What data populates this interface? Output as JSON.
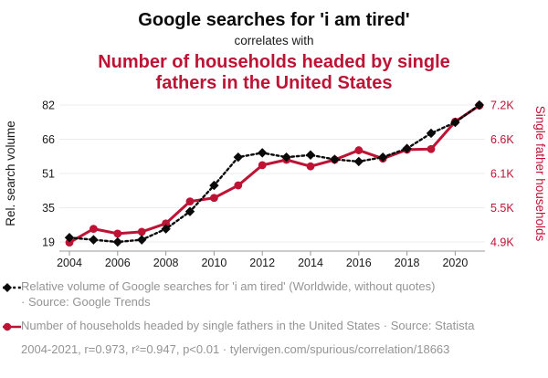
{
  "header": {
    "title": "Google searches for 'i am tired'",
    "subtitle": "correlates with",
    "title2": "Number of households headed by single fathers in the United States"
  },
  "colors": {
    "red": "#bd1335",
    "black": "#0a0a0a",
    "legend_gray": "#949494",
    "grid": "#ececec",
    "axis": "#999999"
  },
  "chart_data": {
    "type": "line",
    "x": [
      2004,
      2005,
      2006,
      2007,
      2008,
      2009,
      2010,
      2011,
      2012,
      2013,
      2014,
      2015,
      2016,
      2017,
      2018,
      2019,
      2020,
      2021
    ],
    "series": [
      {
        "name": "Relative volume of Google searches for 'i am tired'",
        "axis": "left",
        "color": "#0a0a0a",
        "line_style": "dashed",
        "marker": "diamond",
        "values": [
          21,
          20,
          19,
          20,
          25,
          33,
          45,
          58,
          60,
          58,
          59,
          57,
          56,
          58,
          62,
          69,
          74,
          82
        ]
      },
      {
        "name": "Number of households headed by single fathers in the United States",
        "axis": "right",
        "color": "#bd1335",
        "line_style": "solid",
        "marker": "circle",
        "values": [
          4890,
          5120,
          5040,
          5070,
          5210,
          5580,
          5640,
          5850,
          6190,
          6280,
          6170,
          6280,
          6440,
          6300,
          6450,
          6460,
          6920,
          7190
        ]
      }
    ],
    "left_axis": {
      "label": "Rel. search volume",
      "ticks": [
        19,
        35,
        51,
        66,
        82
      ],
      "range": [
        19,
        82
      ]
    },
    "right_axis": {
      "label": "Single father households",
      "ticks": [
        "4.9K",
        "5.5K",
        "6.1K",
        "6.6K",
        "7.2K"
      ],
      "tick_values": [
        4900,
        5500,
        6100,
        6600,
        7200
      ],
      "range": [
        4900,
        7200
      ]
    },
    "x_axis": {
      "ticks": [
        2004,
        2006,
        2008,
        2010,
        2012,
        2014,
        2016,
        2018,
        2020
      ],
      "range": [
        2004,
        2021
      ]
    },
    "grid": true,
    "legend_position": "bottom"
  },
  "legend": {
    "items": [
      {
        "marker": "black-diamond-dashed-line",
        "text": "Relative volume of Google searches for 'i am tired' (Worldwide, without quotes) · Source: Google Trends"
      },
      {
        "marker": "red-circle-solid-line",
        "text": "Number of households headed by single fathers in the United States · Source: Statista"
      }
    ]
  },
  "footer": {
    "text": "2004-2021, r=0.973, r²=0.947, p<0.01 · tylervigen.com/spurious/correlation/18663"
  }
}
